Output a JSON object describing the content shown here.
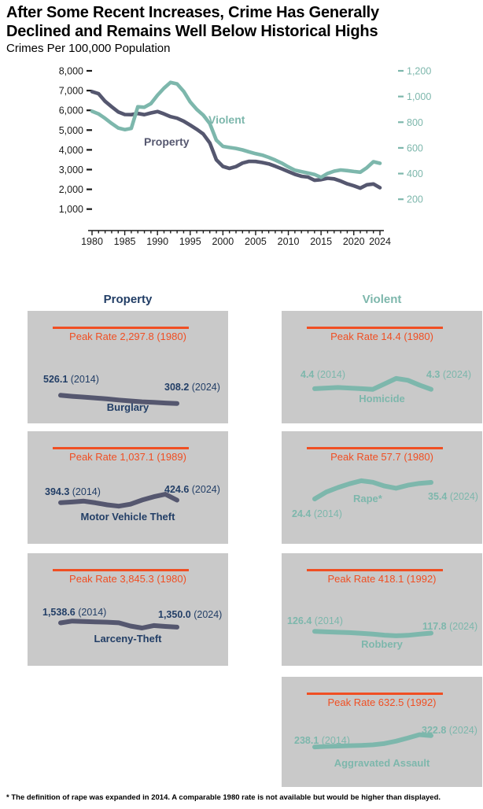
{
  "header": {
    "title_line1": "After Some Recent Increases, Crime Has Generally",
    "title_line2": "Declined and Remains Well Below Historical Highs",
    "subtitle": "Crimes Per 100,000 Population"
  },
  "columns": {
    "property": "Property",
    "violent": "Violent"
  },
  "footnote": "* The definition of rape was expanded in 2014. A comparable 1980 rate is not available but would be higher than displayed.",
  "colors": {
    "property_line": "#55576f",
    "property_text": "#223e66",
    "violent": "#7db7ac",
    "peak_orange": "#f04f23",
    "panel_bg": "#c9c9c9",
    "axis_text": "#1a1a1a"
  },
  "main_chart": {
    "property_label": "Property",
    "violent_label": "Violent"
  },
  "chart_data": {
    "type": "line",
    "title": "Crimes Per 100,000 Population",
    "x_years": [
      1980,
      1981,
      1982,
      1983,
      1984,
      1985,
      1986,
      1987,
      1988,
      1989,
      1990,
      1991,
      1992,
      1993,
      1994,
      1995,
      1996,
      1997,
      1998,
      1999,
      2000,
      2001,
      2002,
      2003,
      2004,
      2005,
      2006,
      2007,
      2008,
      2009,
      2010,
      2011,
      2012,
      2013,
      2014,
      2015,
      2016,
      2017,
      2018,
      2019,
      2020,
      2021,
      2022,
      2023,
      2024
    ],
    "x_tick_years": [
      1980,
      1985,
      1990,
      1995,
      2000,
      2005,
      2010,
      2015,
      2020,
      2024
    ],
    "left_axis": {
      "series": "Property",
      "ticks": [
        1000,
        2000,
        3000,
        4000,
        5000,
        6000,
        7000,
        8000
      ],
      "range": [
        1000,
        8000
      ]
    },
    "right_axis": {
      "series": "Violent",
      "ticks": [
        200,
        400,
        600,
        800,
        1000,
        1200
      ],
      "range": [
        200,
        1200
      ]
    },
    "grid": false,
    "series": [
      {
        "name": "Property",
        "axis": "left",
        "values": [
          6950,
          6840,
          6460,
          6180,
          5920,
          5790,
          5780,
          5840,
          5780,
          5870,
          5940,
          5820,
          5680,
          5600,
          5450,
          5250,
          5040,
          4800,
          4350,
          3500,
          3160,
          3060,
          3150,
          3330,
          3420,
          3410,
          3360,
          3290,
          3170,
          3040,
          2900,
          2760,
          2660,
          2620,
          2460,
          2490,
          2560,
          2530,
          2420,
          2280,
          2180,
          2060,
          2230,
          2270,
          2083
        ]
      },
      {
        "name": "Violent",
        "axis": "right",
        "values": [
          885,
          865,
          830,
          790,
          755,
          742,
          752,
          920,
          916,
          945,
          1010,
          1065,
          1110,
          1098,
          1040,
          958,
          900,
          855,
          790,
          660,
          612,
          603,
          596,
          584,
          569,
          555,
          544,
          526,
          505,
          481,
          452,
          426,
          415,
          404,
          393,
          371,
          401,
          419,
          428,
          423,
          416,
          411,
          446,
          492,
          480
        ]
      }
    ],
    "panels": [
      {
        "group": "Property",
        "name": "Burglary",
        "peak_label": "Peak Rate 2,297.8 (1980)",
        "peak_value": 2297.8,
        "peak_year": 1980,
        "start_label_value": "526.1",
        "start_label_year": "(2014)",
        "end_label_value": "308.2",
        "end_label_year": "(2024)",
        "years": [
          2014,
          2015,
          2016,
          2017,
          2018,
          2019,
          2020,
          2021,
          2022,
          2023,
          2024
        ],
        "values": [
          526.1,
          500,
          478,
          455,
          430,
          402,
          375,
          352,
          338,
          322,
          308.2
        ]
      },
      {
        "group": "Property",
        "name": "Motor Vehicle Theft",
        "peak_label": "Peak Rate 1,037.1 (1989)",
        "peak_value": 1037.1,
        "peak_year": 1989,
        "start_label_value": "394.3",
        "start_label_year": "(2014)",
        "end_label_value": "424.6",
        "end_label_year": "(2024)",
        "years": [
          2014,
          2015,
          2016,
          2017,
          2018,
          2019,
          2020,
          2021,
          2022,
          2023,
          2024
        ],
        "values": [
          394.3,
          402,
          412,
          392,
          368,
          352,
          375,
          425,
          465,
          495,
          424.6
        ]
      },
      {
        "group": "Property",
        "name": "Larceny-Theft",
        "peak_label": "Peak Rate 3,845.3 (1980)",
        "peak_value": 3845.3,
        "peak_year": 1980,
        "start_label_value": "1,538.6",
        "start_label_year": "(2014)",
        "end_label_value": "1,350.0",
        "end_label_year": "(2024)",
        "years": [
          2014,
          2015,
          2016,
          2017,
          2018,
          2019,
          2020,
          2021,
          2022,
          2023,
          2024
        ],
        "values": [
          1538.6,
          1620,
          1600,
          1580,
          1570,
          1540,
          1400,
          1310,
          1420,
          1380,
          1350.0
        ]
      },
      {
        "group": "Violent",
        "name": "Homicide",
        "peak_label": "Peak Rate 14.4 (1980)",
        "peak_value": 14.4,
        "peak_year": 1980,
        "start_label_value": "4.4",
        "start_label_year": "(2014)",
        "end_label_value": "4.3",
        "end_label_year": "(2024)",
        "years": [
          2014,
          2015,
          2016,
          2017,
          2018,
          2019,
          2020,
          2021,
          2022,
          2023,
          2024
        ],
        "values": [
          4.4,
          4.5,
          4.6,
          4.5,
          4.4,
          4.3,
          5.2,
          6.1,
          5.8,
          5.0,
          4.3
        ]
      },
      {
        "group": "Violent",
        "name": "Rape*",
        "peak_label": "Peak Rate 57.7 (1980)",
        "peak_value": 57.7,
        "peak_year": 1980,
        "start_label_value": "24.4",
        "start_label_year": "(2014)",
        "end_label_value": "35.4",
        "end_label_year": "(2024)",
        "years": [
          2014,
          2015,
          2016,
          2017,
          2018,
          2019,
          2020,
          2021,
          2022,
          2023,
          2024
        ],
        "values": [
          24.4,
          29.0,
          32.0,
          34.5,
          36.5,
          35.5,
          33.0,
          31.5,
          33.5,
          34.8,
          35.4
        ]
      },
      {
        "group": "Violent",
        "name": "Robbery",
        "peak_label": "Peak Rate 418.1 (1992)",
        "peak_value": 418.1,
        "peak_year": 1992,
        "start_label_value": "126.4",
        "start_label_year": "(2014)",
        "end_label_value": "117.8",
        "end_label_year": "(2024)",
        "years": [
          2014,
          2015,
          2016,
          2017,
          2018,
          2019,
          2020,
          2021,
          2022,
          2023,
          2024
        ],
        "values": [
          126.4,
          124,
          122,
          120,
          117,
          113,
          108,
          105,
          107,
          113,
          117.8
        ]
      },
      {
        "group": "Violent",
        "name": "Aggravated Assault",
        "peak_label": "Peak Rate 632.5 (1992)",
        "peak_value": 632.5,
        "peak_year": 1992,
        "start_label_value": "238.1",
        "start_label_year": "(2014)",
        "end_label_value": "322.8",
        "end_label_year": "(2024)",
        "years": [
          2014,
          2015,
          2016,
          2017,
          2018,
          2019,
          2020,
          2021,
          2022,
          2023,
          2024
        ],
        "values": [
          238.1,
          242,
          245,
          248,
          250,
          254,
          264,
          282,
          305,
          330,
          322.8
        ]
      }
    ]
  }
}
